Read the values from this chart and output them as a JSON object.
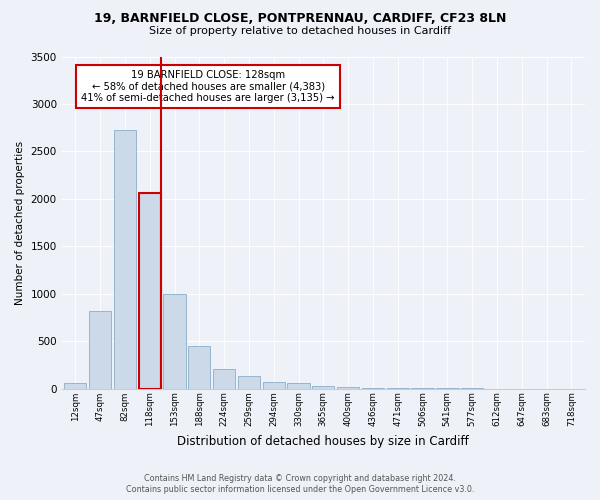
{
  "title1": "19, BARNFIELD CLOSE, PONTPRENNAU, CARDIFF, CF23 8LN",
  "title2": "Size of property relative to detached houses in Cardiff",
  "xlabel": "Distribution of detached houses by size in Cardiff",
  "ylabel": "Number of detached properties",
  "annotation_title": "19 BARNFIELD CLOSE: 128sqm",
  "annotation_line2": "← 58% of detached houses are smaller (4,383)",
  "annotation_line3": "41% of semi-detached houses are larger (3,135) →",
  "footer1": "Contains HM Land Registry data © Crown copyright and database right 2024.",
  "footer2": "Contains public sector information licensed under the Open Government Licence v3.0.",
  "property_size": 128,
  "bar_color": "#ccd9e8",
  "bar_edgecolor": "#8aafc8",
  "highlight_color": "#cc0000",
  "background_color": "#eef2f8",
  "categories": [
    "12sqm",
    "47sqm",
    "82sqm",
    "118sqm",
    "153sqm",
    "188sqm",
    "224sqm",
    "259sqm",
    "294sqm",
    "330sqm",
    "365sqm",
    "400sqm",
    "436sqm",
    "471sqm",
    "506sqm",
    "541sqm",
    "577sqm",
    "612sqm",
    "647sqm",
    "683sqm",
    "718sqm"
  ],
  "values": [
    60,
    820,
    2720,
    2060,
    1000,
    450,
    210,
    130,
    70,
    55,
    25,
    20,
    10,
    5,
    3,
    2,
    1,
    0,
    0,
    0,
    0
  ],
  "ylim": [
    0,
    3500
  ],
  "yticks": [
    0,
    500,
    1000,
    1500,
    2000,
    2500,
    3000,
    3500
  ],
  "highlight_idx": 3,
  "grid_color": "#ffffff",
  "spine_color": "#cccccc"
}
